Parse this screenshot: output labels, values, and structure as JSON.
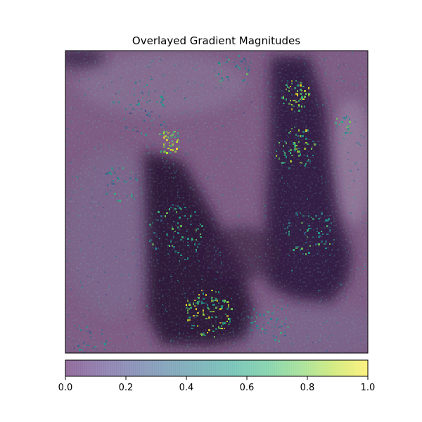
{
  "chart_data": {
    "type": "heatmap",
    "title": "Overlayed Gradient Magnitudes",
    "xlabel": "",
    "ylabel": "",
    "axis_ticks_visible": false,
    "colormap": "viridis",
    "overlay_alpha": 0.5,
    "background_image": "dark purple grayscale photograph showing two dark vertical forms (left: rising from lower-left, right: tall band upper-right)",
    "highlight_regions": [
      {
        "region": "upper-left-center",
        "intensity": 1.0
      },
      {
        "region": "upper-right (inner edge of right dark form)",
        "intensity": 1.0
      },
      {
        "region": "bottom-center (base of left dark form)",
        "intensity": 1.0
      },
      {
        "region": "right form mid edges",
        "intensity": 0.8
      },
      {
        "region": "scattered background speckle",
        "intensity": 0.3
      }
    ],
    "colorbar": {
      "orientation": "horizontal",
      "range": [
        0.0,
        1.0
      ],
      "tick_values": [
        0.0,
        0.2,
        0.4,
        0.6,
        0.8,
        1.0
      ],
      "tick_labels": [
        "0.0",
        "0.2",
        "0.4",
        "0.6",
        "0.8",
        "1.0"
      ]
    }
  },
  "colors": {
    "viridis_stops": [
      "#440154",
      "#482878",
      "#3e4989",
      "#31688e",
      "#26828e",
      "#1f9e89",
      "#35b779",
      "#6ece58",
      "#b5de2b",
      "#fde725"
    ],
    "background_tint": "#7e5c83",
    "dark_form": "#2d1a3a"
  }
}
